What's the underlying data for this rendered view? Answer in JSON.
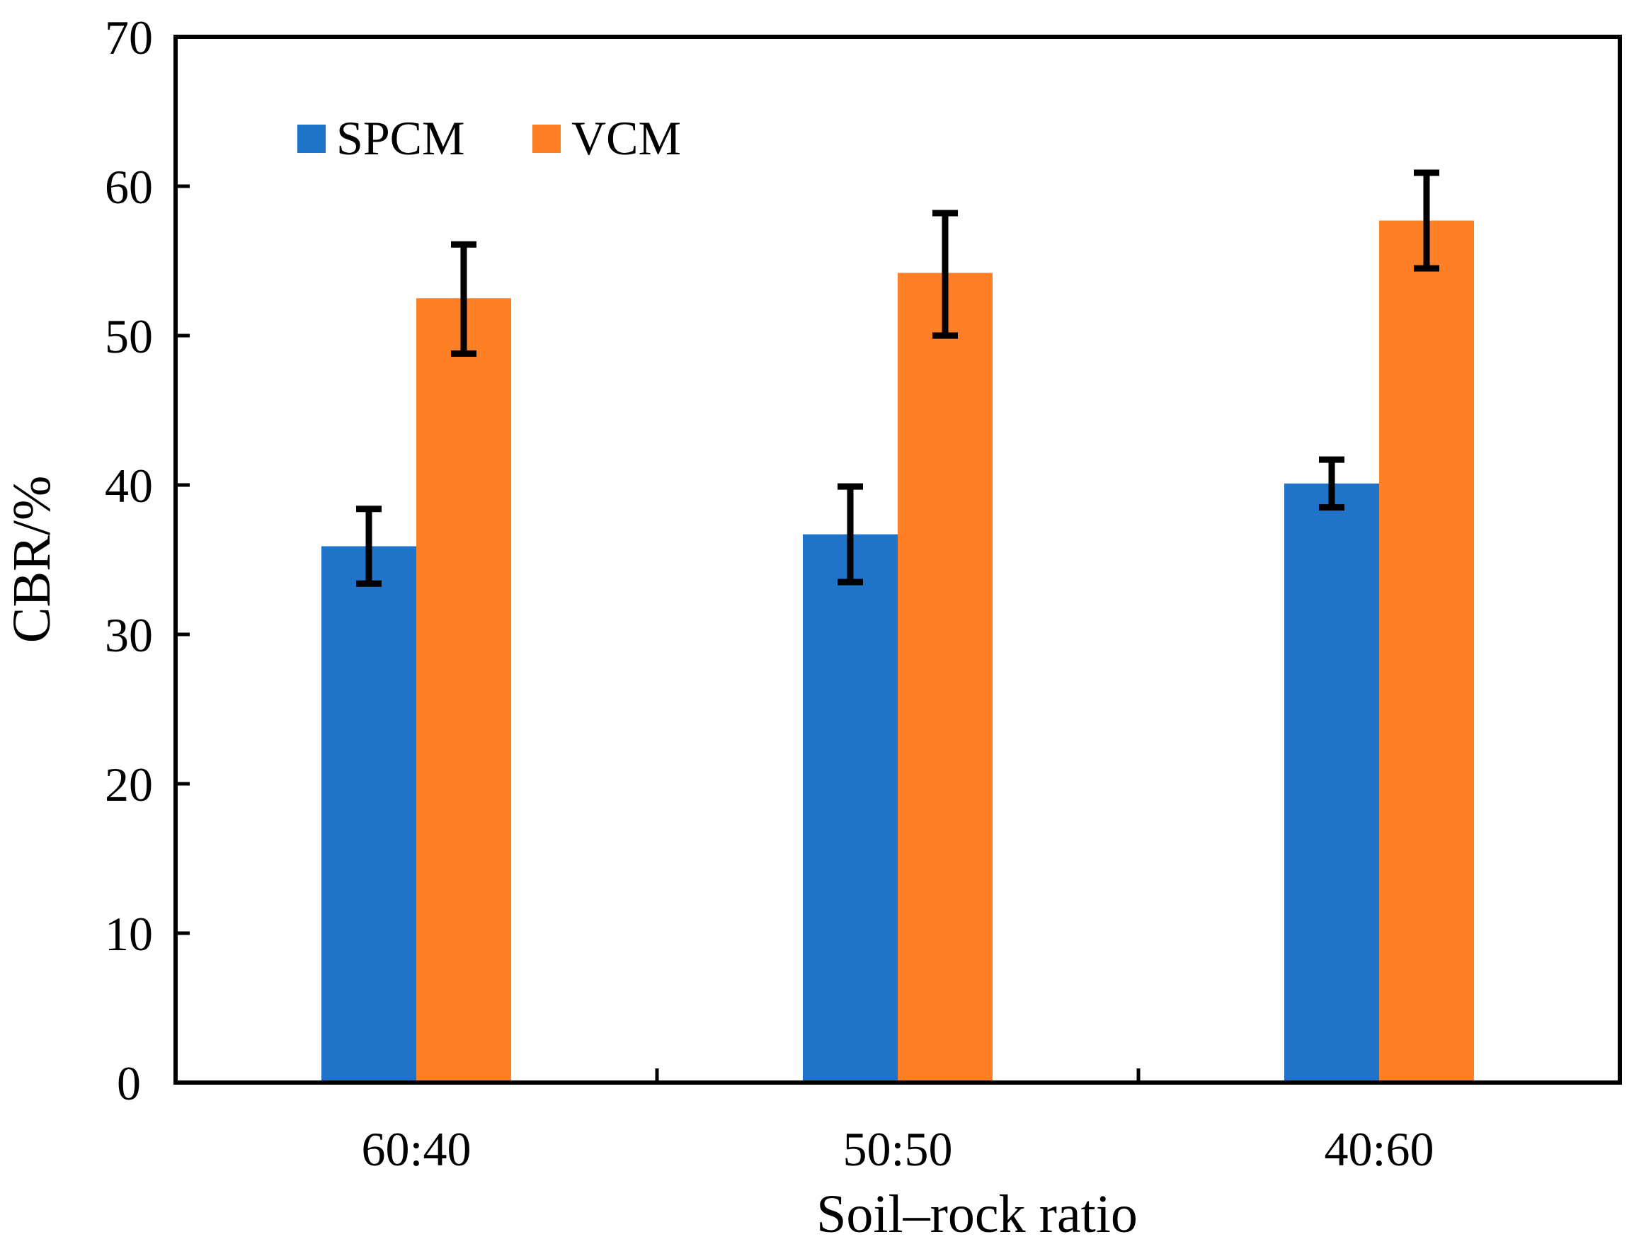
{
  "chart_data": {
    "type": "bar",
    "xlabel": "Soil–rock ratio",
    "ylabel": "CBR/%",
    "ylim": [
      0,
      70
    ],
    "yticks": [
      0,
      10,
      20,
      30,
      40,
      50,
      60,
      70
    ],
    "categories": [
      "60:40",
      "50:50",
      "40:60"
    ],
    "series": [
      {
        "name": "SPCM",
        "color": "#1f73c8",
        "values": [
          35.9,
          36.7,
          40.1
        ],
        "error_low": [
          33.4,
          33.5,
          38.5
        ],
        "error_high": [
          38.4,
          39.9,
          41.7
        ]
      },
      {
        "name": "VCM",
        "color": "#fe7f26",
        "values": [
          52.5,
          54.2,
          57.7
        ],
        "error_low": [
          48.8,
          50.0,
          54.5
        ],
        "error_high": [
          56.1,
          58.2,
          60.9
        ]
      }
    ],
    "legend_position": "top-left",
    "grid": false
  }
}
